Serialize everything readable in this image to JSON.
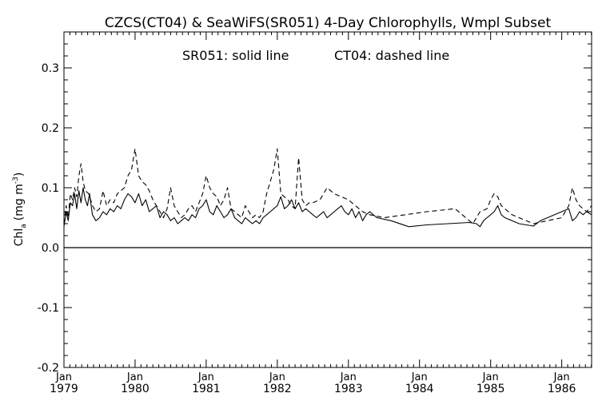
{
  "chart_data": {
    "type": "line",
    "title": "CZCS(CT04) & SeaWiFS(SR051) 4-Day Chlorophylls, Wmpl Subset",
    "annotation_solid": "SR051: solid line",
    "annotation_dashed": "CT04: dashed line",
    "ylabel_main": "Chl",
    "ylabel_sub": "a",
    "ylabel_units": "(mg m",
    "ylabel_sup": "-3",
    "ylabel_close": ")",
    "xlim": [
      1979.0,
      1986.42
    ],
    "ylim": [
      -0.2,
      0.36
    ],
    "y_ticks": [
      {
        "value": -0.2,
        "label": "-0.2"
      },
      {
        "value": -0.1,
        "label": "-0.1"
      },
      {
        "value": 0.0,
        "label": "0.0"
      },
      {
        "value": 0.1,
        "label": "0.1"
      },
      {
        "value": 0.2,
        "label": "0.2"
      },
      {
        "value": 0.3,
        "label": "0.3"
      }
    ],
    "x_ticks": [
      {
        "value": 1979,
        "month": "Jan",
        "year": "1979"
      },
      {
        "value": 1980,
        "month": "Jan",
        "year": "1980"
      },
      {
        "value": 1981,
        "month": "Jan",
        "year": "1981"
      },
      {
        "value": 1982,
        "month": "Jan",
        "year": "1982"
      },
      {
        "value": 1983,
        "month": "Jan",
        "year": "1983"
      },
      {
        "value": 1984,
        "month": "Jan",
        "year": "1984"
      },
      {
        "value": 1985,
        "month": "Jan",
        "year": "1985"
      },
      {
        "value": 1986,
        "month": "Jan",
        "year": "1986"
      }
    ],
    "reference_line_y": 0.0,
    "series": [
      {
        "name": "SR051",
        "style": "solid",
        "x": [
          1979.0,
          1979.03,
          1979.06,
          1979.09,
          1979.12,
          1979.15,
          1979.18,
          1979.21,
          1979.24,
          1979.27,
          1979.3,
          1979.33,
          1979.36,
          1979.4,
          1979.45,
          1979.5,
          1979.55,
          1979.6,
          1979.65,
          1979.7,
          1979.75,
          1979.8,
          1979.85,
          1979.9,
          1979.95,
          1980.0,
          1980.05,
          1980.1,
          1980.15,
          1980.2,
          1980.25,
          1980.3,
          1980.35,
          1980.4,
          1980.45,
          1980.5,
          1980.55,
          1980.6,
          1980.65,
          1980.7,
          1980.75,
          1980.8,
          1980.85,
          1980.9,
          1980.95,
          1981.0,
          1981.05,
          1981.1,
          1981.15,
          1981.2,
          1981.25,
          1981.3,
          1981.35,
          1981.4,
          1981.45,
          1981.5,
          1981.55,
          1981.6,
          1981.65,
          1981.7,
          1981.75,
          1981.8,
          1981.85,
          1981.9,
          1981.95,
          1982.0,
          1982.05,
          1982.1,
          1982.15,
          1982.2,
          1982.25,
          1982.3,
          1982.35,
          1982.4,
          1982.45,
          1982.5,
          1982.55,
          1982.6,
          1982.65,
          1982.7,
          1982.75,
          1982.8,
          1982.85,
          1982.9,
          1982.95,
          1983.0,
          1983.05,
          1983.1,
          1983.15,
          1983.2,
          1983.25,
          1983.3,
          1983.4,
          1983.6,
          1983.85,
          1984.1,
          1984.4,
          1984.7,
          1984.8,
          1984.85,
          1984.9,
          1984.95,
          1985.0,
          1985.05,
          1985.1,
          1985.15,
          1985.2,
          1985.3,
          1985.4,
          1985.5,
          1985.6,
          1985.7,
          1985.8,
          1985.9,
          1986.0,
          1986.1,
          1986.15,
          1986.2,
          1986.25,
          1986.3,
          1986.35,
          1986.42
        ],
        "y": [
          0.035,
          0.06,
          0.045,
          0.075,
          0.07,
          0.09,
          0.065,
          0.095,
          0.075,
          0.1,
          0.08,
          0.07,
          0.09,
          0.055,
          0.045,
          0.05,
          0.06,
          0.055,
          0.065,
          0.06,
          0.07,
          0.065,
          0.08,
          0.09,
          0.085,
          0.075,
          0.09,
          0.07,
          0.08,
          0.06,
          0.065,
          0.07,
          0.05,
          0.06,
          0.055,
          0.045,
          0.05,
          0.04,
          0.045,
          0.05,
          0.045,
          0.055,
          0.05,
          0.065,
          0.07,
          0.08,
          0.06,
          0.055,
          0.07,
          0.06,
          0.05,
          0.055,
          0.065,
          0.05,
          0.045,
          0.04,
          0.05,
          0.045,
          0.04,
          0.045,
          0.04,
          0.05,
          0.055,
          0.06,
          0.065,
          0.07,
          0.085,
          0.065,
          0.07,
          0.08,
          0.065,
          0.075,
          0.06,
          0.065,
          0.06,
          0.055,
          0.05,
          0.055,
          0.06,
          0.05,
          0.055,
          0.06,
          0.065,
          0.07,
          0.06,
          0.055,
          0.065,
          0.05,
          0.06,
          0.045,
          0.055,
          0.06,
          0.05,
          0.045,
          0.035,
          0.038,
          0.04,
          0.042,
          0.04,
          0.035,
          0.045,
          0.05,
          0.055,
          0.06,
          0.07,
          0.055,
          0.05,
          0.045,
          0.04,
          0.038,
          0.036,
          0.045,
          0.05,
          0.055,
          0.06,
          0.065,
          0.045,
          0.05,
          0.06,
          0.055,
          0.06,
          0.055
        ]
      },
      {
        "name": "CT04",
        "style": "dashed",
        "x": [
          1979.0,
          1979.03,
          1979.06,
          1979.09,
          1979.12,
          1979.15,
          1979.18,
          1979.21,
          1979.24,
          1979.27,
          1979.3,
          1979.35,
          1979.4,
          1979.45,
          1979.5,
          1979.55,
          1979.6,
          1979.65,
          1979.7,
          1979.75,
          1979.8,
          1979.85,
          1979.9,
          1979.95,
          1980.0,
          1980.05,
          1980.1,
          1980.15,
          1980.2,
          1980.25,
          1980.3,
          1980.35,
          1980.4,
          1980.45,
          1980.5,
          1980.55,
          1980.6,
          1980.65,
          1980.7,
          1980.75,
          1980.8,
          1980.85,
          1980.9,
          1980.95,
          1981.0,
          1981.05,
          1981.1,
          1981.15,
          1981.2,
          1981.25,
          1981.3,
          1981.35,
          1981.4,
          1981.45,
          1981.5,
          1981.55,
          1981.6,
          1981.65,
          1981.7,
          1981.75,
          1981.8,
          1981.85,
          1981.9,
          1981.95,
          1982.0,
          1982.05,
          1982.1,
          1982.15,
          1982.2,
          1982.25,
          1982.3,
          1982.35,
          1982.4,
          1982.45,
          1982.5,
          1982.6,
          1982.7,
          1982.8,
          1982.9,
          1983.0,
          1983.05,
          1983.1,
          1983.15,
          1983.2,
          1983.3,
          1983.5,
          1983.8,
          1984.1,
          1984.5,
          1984.75,
          1984.85,
          1984.95,
          1985.0,
          1985.05,
          1985.1,
          1985.15,
          1985.2,
          1985.3,
          1985.4,
          1985.6,
          1985.8,
          1986.0,
          1986.1,
          1986.15,
          1986.2,
          1986.25,
          1986.3,
          1986.35,
          1986.42
        ],
        "y": [
          0.04,
          0.07,
          0.05,
          0.09,
          0.08,
          0.1,
          0.085,
          0.12,
          0.14,
          0.11,
          0.095,
          0.09,
          0.07,
          0.06,
          0.065,
          0.095,
          0.07,
          0.08,
          0.075,
          0.09,
          0.095,
          0.1,
          0.12,
          0.13,
          0.165,
          0.12,
          0.11,
          0.105,
          0.095,
          0.08,
          0.07,
          0.06,
          0.05,
          0.065,
          0.1,
          0.07,
          0.06,
          0.05,
          0.055,
          0.065,
          0.07,
          0.06,
          0.075,
          0.09,
          0.12,
          0.1,
          0.09,
          0.085,
          0.07,
          0.08,
          0.1,
          0.065,
          0.06,
          0.055,
          0.05,
          0.07,
          0.06,
          0.05,
          0.055,
          0.05,
          0.06,
          0.09,
          0.11,
          0.13,
          0.165,
          0.09,
          0.085,
          0.08,
          0.07,
          0.065,
          0.15,
          0.08,
          0.07,
          0.075,
          0.075,
          0.08,
          0.1,
          0.09,
          0.085,
          0.08,
          0.075,
          0.07,
          0.065,
          0.06,
          0.055,
          0.05,
          0.055,
          0.06,
          0.065,
          0.04,
          0.06,
          0.065,
          0.08,
          0.09,
          0.085,
          0.07,
          0.065,
          0.055,
          0.05,
          0.04,
          0.045,
          0.05,
          0.07,
          0.1,
          0.08,
          0.07,
          0.065,
          0.06,
          0.07
        ]
      }
    ]
  }
}
